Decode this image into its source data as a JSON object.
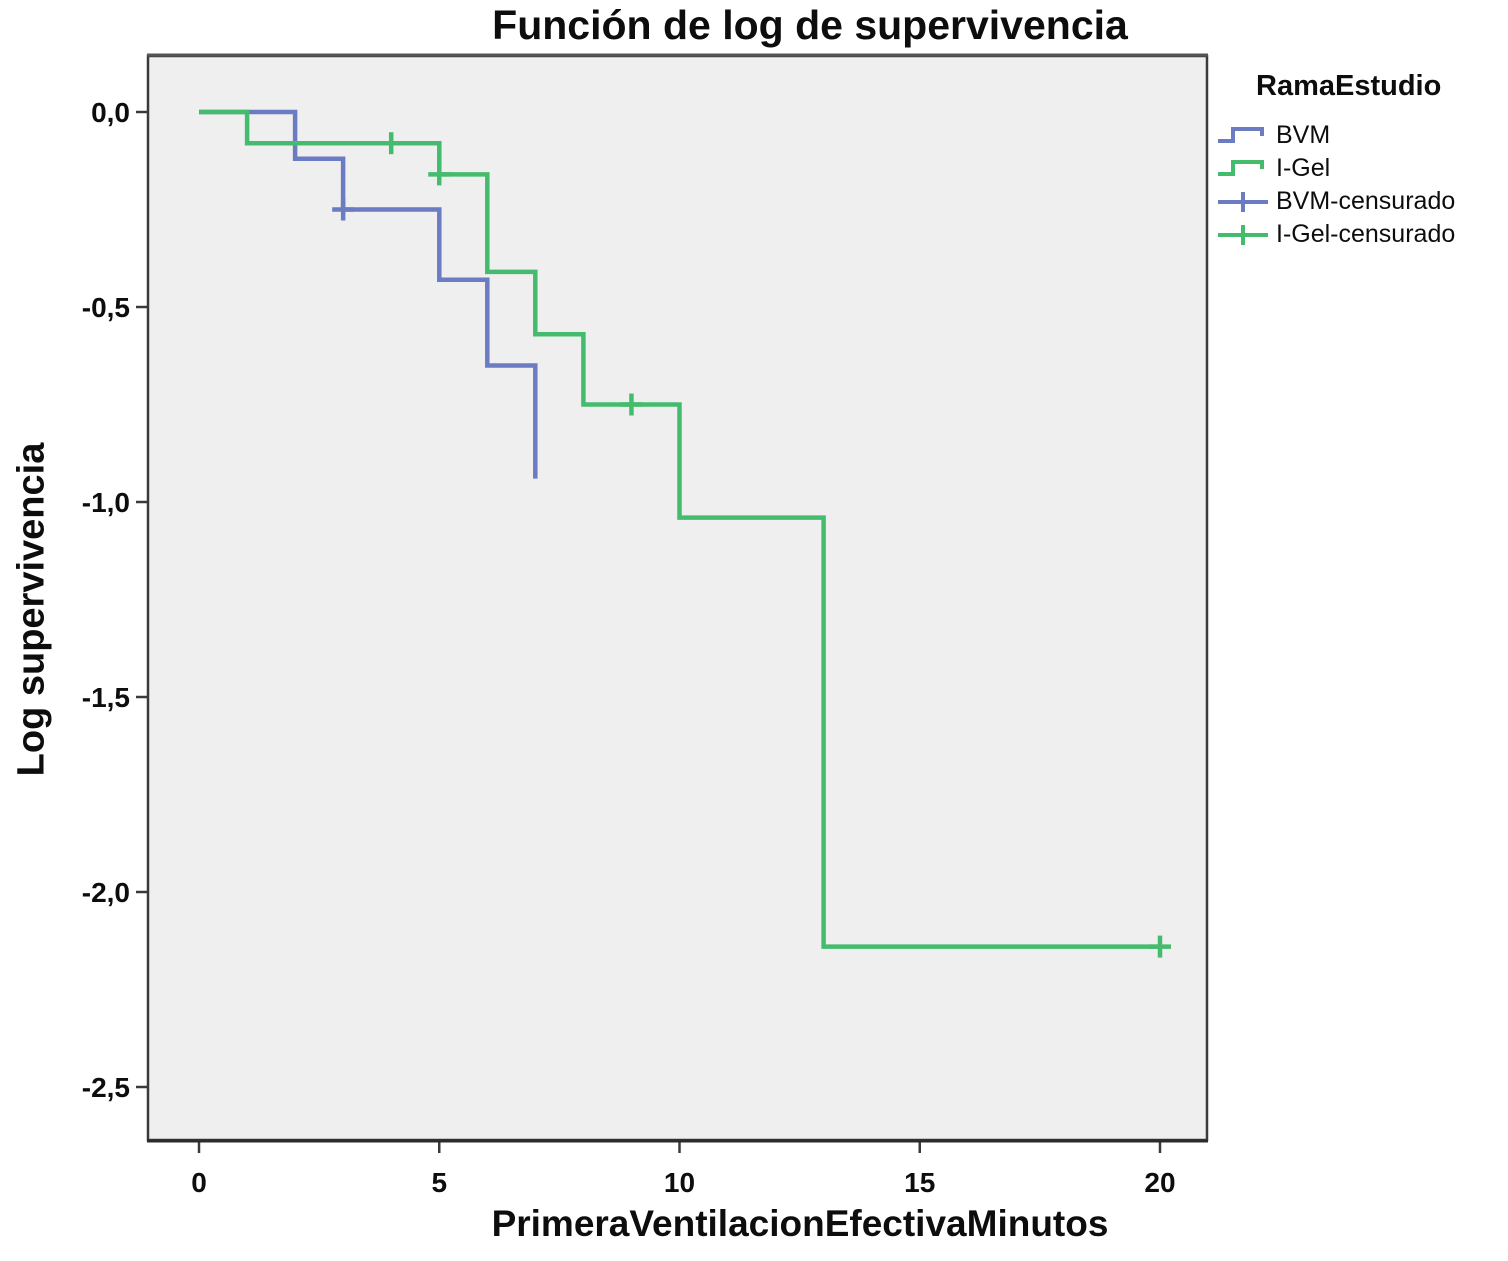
{
  "title": "Función de log de supervivencia",
  "y_axis": {
    "label": "Log supervivencia",
    "tick_labels": [
      "0,0",
      "-0,5",
      "-1,0",
      "-1,5",
      "-2,0",
      "-2,5"
    ],
    "tick_values": [
      0,
      -0.5,
      -1.0,
      -1.5,
      -2.0,
      -2.5
    ]
  },
  "x_axis": {
    "label": "PrimeraVentilacionEfectivaMinutos",
    "tick_labels": [
      "0",
      "5",
      "10",
      "15",
      "20"
    ],
    "tick_values": [
      0,
      5,
      10,
      15,
      20
    ]
  },
  "legend": {
    "title": "RamaEstudio",
    "items": [
      {
        "label": "BVM",
        "type": "step-line",
        "color": "#6b7cc2"
      },
      {
        "label": "I-Gel",
        "type": "step-line",
        "color": "#45bc6d"
      },
      {
        "label": "BVM-censurado",
        "type": "censor-cross",
        "color": "#6b7cc2"
      },
      {
        "label": "I-Gel-censurado",
        "type": "censor-cross",
        "color": "#45bc6d"
      }
    ]
  },
  "colors": {
    "bvm": "#6b7cc2",
    "igel": "#45bc6d",
    "plot_background": "#efefef",
    "frame": "#3a3a3a",
    "text": "#0d0d0d"
  },
  "chart_data": {
    "type": "line",
    "subtype": "kaplan-meier-step",
    "title": "Función de log de supervivencia",
    "xlabel": "PrimeraVentilacionEfectivaMinutos",
    "ylabel": "Log supervivencia",
    "xlim": [
      -1.05,
      21
    ],
    "ylim": [
      -2.64,
      0.14
    ],
    "x_ticks": [
      0,
      5,
      10,
      15,
      20
    ],
    "y_ticks": [
      0,
      -0.5,
      -1.0,
      -1.5,
      -2.0,
      -2.5
    ],
    "grid": false,
    "legend_position": "right",
    "series": [
      {
        "name": "BVM",
        "color": "#6b7cc2",
        "step_points": [
          [
            0,
            0
          ],
          [
            2,
            -0.12
          ],
          [
            3,
            -0.25
          ],
          [
            5,
            -0.43
          ],
          [
            6,
            -0.65
          ],
          [
            7,
            -0.94
          ]
        ],
        "censored_points": [
          [
            3,
            -0.25
          ]
        ]
      },
      {
        "name": "I-Gel",
        "color": "#45bc6d",
        "step_points": [
          [
            0,
            0
          ],
          [
            1,
            -0.08
          ],
          [
            5,
            -0.16
          ],
          [
            6,
            -0.41
          ],
          [
            7,
            -0.57
          ],
          [
            8,
            -0.75
          ],
          [
            10,
            -1.04
          ],
          [
            13,
            -2.14
          ],
          [
            20,
            -2.14
          ]
        ],
        "censored_points": [
          [
            4,
            -0.08
          ],
          [
            5,
            -0.16
          ],
          [
            9,
            -0.75
          ],
          [
            20,
            -2.14
          ]
        ]
      }
    ]
  }
}
